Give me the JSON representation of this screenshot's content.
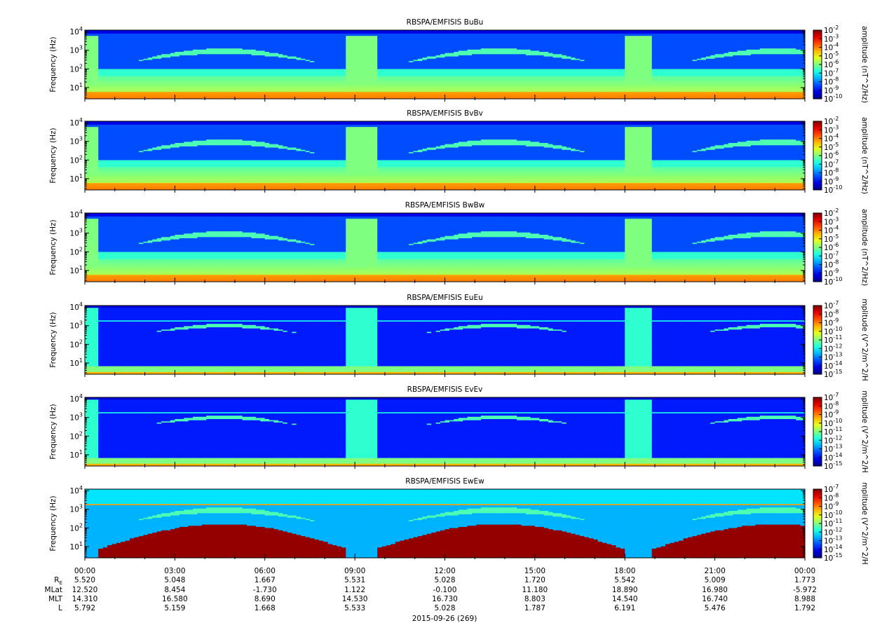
{
  "chart_data": [
    {
      "type": "heatmap",
      "title": "RBSPA/EMFISIS  BuBu",
      "ylabel": "Frequency (Hz)",
      "yscale": "log",
      "ylim": [
        2.5,
        12000
      ],
      "yticks": [
        {
          "base": "10",
          "exp": "1",
          "v": 10
        },
        {
          "base": "10",
          "exp": "2",
          "v": 100
        },
        {
          "base": "10",
          "exp": "3",
          "v": 1000
        },
        {
          "base": "10",
          "exp": "4",
          "v": 10000
        }
      ],
      "colorbar": {
        "label": "amplitude (nT^2/Hz)",
        "scale": "log",
        "range": [
          -10,
          -2
        ],
        "ticks": [
          {
            "base": "10",
            "exp": "-2"
          },
          {
            "base": "10",
            "exp": "-3"
          },
          {
            "base": "10",
            "exp": "-4"
          },
          {
            "base": "10",
            "exp": "-5"
          },
          {
            "base": "10",
            "exp": "-6"
          },
          {
            "base": "10",
            "exp": "-7"
          },
          {
            "base": "10",
            "exp": "-8"
          },
          {
            "base": "10",
            "exp": "-9"
          },
          {
            "base": "10",
            "exp": "-10"
          }
        ]
      }
    },
    {
      "type": "heatmap",
      "title": "RBSPA/EMFISIS  BvBv",
      "ylabel": "Frequency (Hz)",
      "yscale": "log",
      "ylim": [
        2.5,
        12000
      ],
      "yticks": [
        {
          "base": "10",
          "exp": "1",
          "v": 10
        },
        {
          "base": "10",
          "exp": "2",
          "v": 100
        },
        {
          "base": "10",
          "exp": "3",
          "v": 1000
        },
        {
          "base": "10",
          "exp": "4",
          "v": 10000
        }
      ],
      "colorbar": {
        "label": "amplitude (nT^2/Hz)",
        "scale": "log",
        "range": [
          -10,
          -2
        ],
        "ticks": [
          {
            "base": "10",
            "exp": "-2"
          },
          {
            "base": "10",
            "exp": "-3"
          },
          {
            "base": "10",
            "exp": "-4"
          },
          {
            "base": "10",
            "exp": "-5"
          },
          {
            "base": "10",
            "exp": "-6"
          },
          {
            "base": "10",
            "exp": "-7"
          },
          {
            "base": "10",
            "exp": "-8"
          },
          {
            "base": "10",
            "exp": "-9"
          },
          {
            "base": "10",
            "exp": "-10"
          }
        ]
      }
    },
    {
      "type": "heatmap",
      "title": "RBSPA/EMFISIS  BwBw",
      "ylabel": "Frequency (Hz)",
      "yscale": "log",
      "ylim": [
        2.5,
        12000
      ],
      "yticks": [
        {
          "base": "10",
          "exp": "1",
          "v": 10
        },
        {
          "base": "10",
          "exp": "2",
          "v": 100
        },
        {
          "base": "10",
          "exp": "3",
          "v": 1000
        },
        {
          "base": "10",
          "exp": "4",
          "v": 10000
        }
      ],
      "colorbar": {
        "label": "amplitude (nT^2/Hz)",
        "scale": "log",
        "range": [
          -10,
          -2
        ],
        "ticks": [
          {
            "base": "10",
            "exp": "-2"
          },
          {
            "base": "10",
            "exp": "-3"
          },
          {
            "base": "10",
            "exp": "-4"
          },
          {
            "base": "10",
            "exp": "-5"
          },
          {
            "base": "10",
            "exp": "-6"
          },
          {
            "base": "10",
            "exp": "-7"
          },
          {
            "base": "10",
            "exp": "-8"
          },
          {
            "base": "10",
            "exp": "-9"
          },
          {
            "base": "10",
            "exp": "-10"
          }
        ]
      }
    },
    {
      "type": "heatmap",
      "title": "RBSPA/EMFISIS  EuEu",
      "ylabel": "Frequency (Hz)",
      "yscale": "log",
      "ylim": [
        2.5,
        12000
      ],
      "yticks": [
        {
          "base": "10",
          "exp": "1",
          "v": 10
        },
        {
          "base": "10",
          "exp": "2",
          "v": 100
        },
        {
          "base": "10",
          "exp": "3",
          "v": 1000
        },
        {
          "base": "10",
          "exp": "4",
          "v": 10000
        }
      ],
      "colorbar": {
        "label": "mplitude (V^2/m^2/H",
        "scale": "log",
        "range": [
          -15,
          -7
        ],
        "ticks": [
          {
            "base": "10",
            "exp": "-7"
          },
          {
            "base": "10",
            "exp": "-8"
          },
          {
            "base": "10",
            "exp": "-9"
          },
          {
            "base": "10",
            "exp": "-10"
          },
          {
            "base": "10",
            "exp": "-11"
          },
          {
            "base": "10",
            "exp": "-12"
          },
          {
            "base": "10",
            "exp": "-13"
          },
          {
            "base": "10",
            "exp": "-14"
          },
          {
            "base": "10",
            "exp": "-15"
          }
        ]
      }
    },
    {
      "type": "heatmap",
      "title": "RBSPA/EMFISIS  EvEv",
      "ylabel": "Frequency (Hz)",
      "yscale": "log",
      "ylim": [
        2.5,
        12000
      ],
      "yticks": [
        {
          "base": "10",
          "exp": "1",
          "v": 10
        },
        {
          "base": "10",
          "exp": "2",
          "v": 100
        },
        {
          "base": "10",
          "exp": "3",
          "v": 1000
        },
        {
          "base": "10",
          "exp": "4",
          "v": 10000
        }
      ],
      "colorbar": {
        "label": "mplitude (V^2/m^2/H",
        "scale": "log",
        "range": [
          -15,
          -7
        ],
        "ticks": [
          {
            "base": "10",
            "exp": "-7"
          },
          {
            "base": "10",
            "exp": "-8"
          },
          {
            "base": "10",
            "exp": "-9"
          },
          {
            "base": "10",
            "exp": "-10"
          },
          {
            "base": "10",
            "exp": "-11"
          },
          {
            "base": "10",
            "exp": "-12"
          },
          {
            "base": "10",
            "exp": "-13"
          },
          {
            "base": "10",
            "exp": "-14"
          },
          {
            "base": "10",
            "exp": "-15"
          }
        ]
      }
    },
    {
      "type": "heatmap",
      "title": "RBSPA/EMFISIS  EwEw",
      "ylabel": "Frequency (Hz)",
      "yscale": "log",
      "ylim": [
        2.5,
        12000
      ],
      "yticks": [
        {
          "base": "10",
          "exp": "1",
          "v": 10
        },
        {
          "base": "10",
          "exp": "2",
          "v": 100
        },
        {
          "base": "10",
          "exp": "3",
          "v": 1000
        },
        {
          "base": "10",
          "exp": "4",
          "v": 10000
        }
      ],
      "colorbar": {
        "label": "mplitude (V^2/m^2/H",
        "scale": "log",
        "range": [
          -15,
          -7
        ],
        "ticks": [
          {
            "base": "10",
            "exp": "-7"
          },
          {
            "base": "10",
            "exp": "-8"
          },
          {
            "base": "10",
            "exp": "-9"
          },
          {
            "base": "10",
            "exp": "-10"
          },
          {
            "base": "10",
            "exp": "-11"
          },
          {
            "base": "10",
            "exp": "-12"
          },
          {
            "base": "10",
            "exp": "-13"
          },
          {
            "base": "10",
            "exp": "-14"
          },
          {
            "base": "10",
            "exp": "-15"
          }
        ]
      }
    }
  ],
  "x_axis": {
    "date_label": "2015-09-26 (269)",
    "time_labels": [
      "00:00",
      "03:00",
      "06:00",
      "09:00",
      "12:00",
      "15:00",
      "18:00",
      "21:00",
      "00:00"
    ],
    "ephemeris": [
      {
        "label": "R",
        "sub": "E",
        "values": [
          "5.520",
          "5.048",
          "1.667",
          "5.531",
          "5.028",
          "1.720",
          "5.542",
          "5.009",
          "1.773"
        ]
      },
      {
        "label": "MLat",
        "sub": "",
        "values": [
          "12.520",
          "8.454",
          "-1.730",
          "1.122",
          "-0.100",
          "11.180",
          "18.890",
          "16.980",
          "-5.972"
        ]
      },
      {
        "label": "MLT",
        "sub": "",
        "values": [
          "14.310",
          "16.580",
          "8.690",
          "14.530",
          "16.730",
          "8.803",
          "14.540",
          "16.740",
          "8.988"
        ]
      },
      {
        "label": "L",
        "sub": "",
        "values": [
          "5.792",
          "5.159",
          "1.668",
          "5.533",
          "5.028",
          "1.787",
          "6.191",
          "5.476",
          "1.792"
        ]
      }
    ]
  }
}
